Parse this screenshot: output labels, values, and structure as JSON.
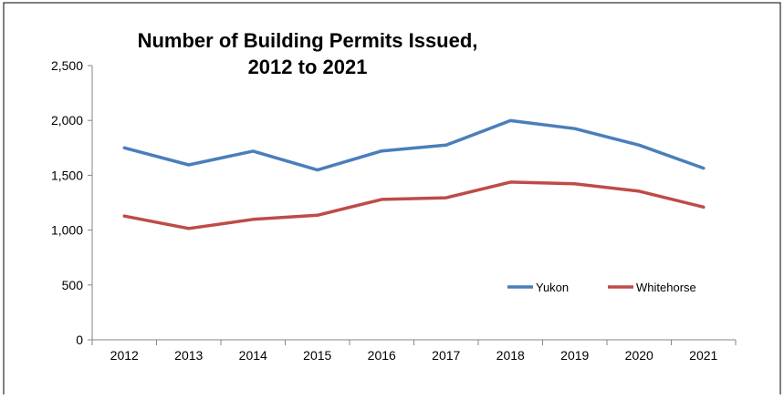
{
  "chart_data": {
    "type": "line",
    "title_lines": [
      "Number of Building Permits Issued,",
      "2012 to 2021"
    ],
    "xlabel": "",
    "ylabel": "",
    "categories": [
      "2012",
      "2013",
      "2014",
      "2015",
      "2016",
      "2017",
      "2018",
      "2019",
      "2020",
      "2021"
    ],
    "ylim": [
      0,
      2500
    ],
    "yticks": [
      0,
      500,
      1000,
      1500,
      2000,
      2500
    ],
    "ytick_labels": [
      "0",
      "500",
      "1,000",
      "1,500",
      "2,000",
      "2,500"
    ],
    "grid": false,
    "legend_position": "lower-right",
    "series": [
      {
        "name": "Yukon",
        "color": "#4A7EBB",
        "values": [
          1750,
          1595,
          1720,
          1548,
          1722,
          1775,
          1998,
          1925,
          1775,
          1565
        ]
      },
      {
        "name": "Whitehorse",
        "color": "#BE4B48",
        "values": [
          1128,
          1015,
          1098,
          1135,
          1280,
          1295,
          1438,
          1422,
          1355,
          1210
        ]
      }
    ]
  }
}
